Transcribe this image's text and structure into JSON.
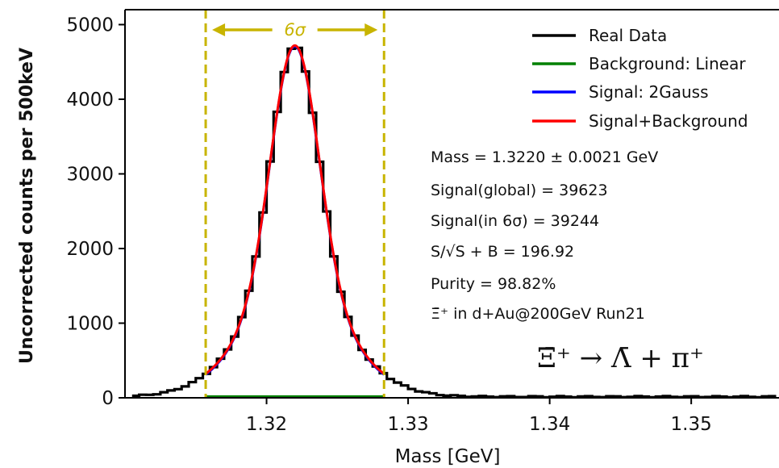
{
  "chart_data": {
    "type": "histogram",
    "xlabel": "Mass [GeV]",
    "ylabel": "Uncorrected counts per 500keV",
    "xlim": [
      1.31,
      1.3562
    ],
    "ylim": [
      0,
      5200
    ],
    "x_ticks": [
      1.32,
      1.33,
      1.34,
      1.35
    ],
    "x_tick_labels": [
      "1.32",
      "1.33",
      "1.34",
      "1.35"
    ],
    "y_ticks": [
      0,
      1000,
      2000,
      3000,
      4000,
      5000
    ],
    "y_tick_labels": [
      "0",
      "1000",
      "2000",
      "3000",
      "4000",
      "5000"
    ],
    "bin_width": 0.0005,
    "data_bin_range": [
      1.3105,
      1.356
    ],
    "peak_value": 4720,
    "fit": {
      "mean": 1.322,
      "sigma": 0.0021,
      "background_level": 15
    },
    "window": {
      "low": 1.3157,
      "high": 1.3283,
      "label": "6σ"
    },
    "series": [
      {
        "name": "Real Data",
        "color": "#000000",
        "style": "step"
      },
      {
        "name": "Background: Linear",
        "color": "#008000",
        "style": "line"
      },
      {
        "name": "Signal: 2Gauss",
        "color": "#0000ff",
        "style": "line"
      },
      {
        "name": "Signal+Background",
        "color": "#ff0000",
        "style": "line"
      }
    ],
    "legend_position": "top-right",
    "annotations": {
      "mass": "Mass = 1.3220 ± 0.0021 GeV",
      "signal_global": "Signal(global) = 39623",
      "signal_window": "Signal(in 6σ) = 39244",
      "significance": "S/√S + B = 196.92",
      "purity": "Purity = 98.82%",
      "dataset": "Ξ̄⁺ in d+Au@200GeV Run21",
      "decay": "Ξ̄⁺ → Λ̄ + π⁺"
    },
    "window_color": "#c8b400"
  }
}
